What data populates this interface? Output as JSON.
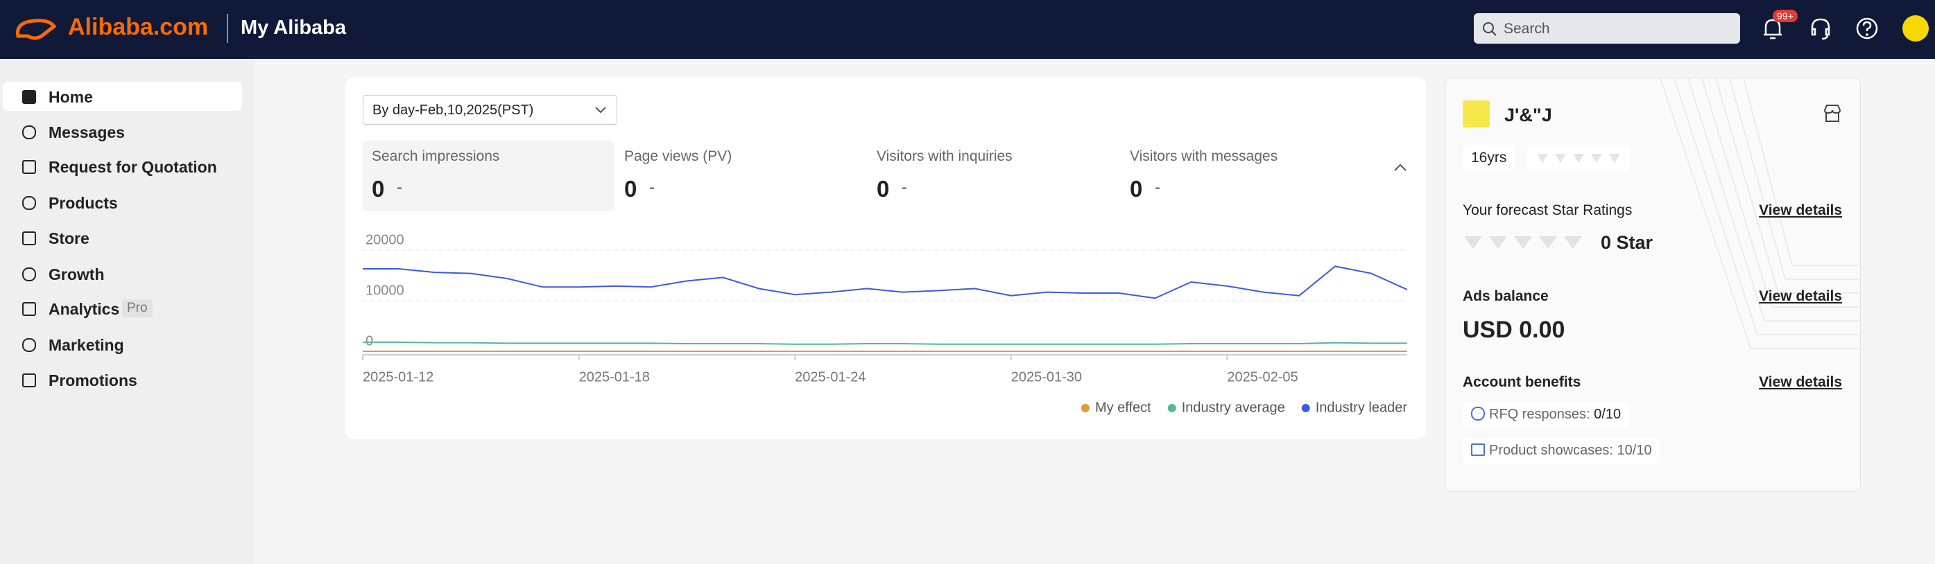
{
  "header": {
    "logo": "Alibaba.com",
    "title": "My Alibaba",
    "search_placeholder": "Search",
    "notification_badge": "99+"
  },
  "sidebar": {
    "items": [
      "Home",
      "Messages",
      "Request for Quotation",
      "Products",
      "Store",
      "Growth",
      "Analytics",
      "Marketing",
      "Promotions"
    ],
    "selected": 0,
    "pro_badge": "Pro"
  },
  "date_selector": "By day-Feb,10,2025(PST)",
  "metrics": [
    {
      "label": "Search impressions",
      "value": 0,
      "change": "-"
    },
    {
      "label": "Page views (PV)",
      "value": 0,
      "change": "-"
    },
    {
      "label": "Visitors with inquiries",
      "value": 0,
      "change": "-"
    },
    {
      "label": "Visitors with messages",
      "value": 0,
      "change": "-"
    }
  ],
  "chart_data": {
    "type": "line",
    "x": [
      "2025-01-12",
      "2025-01-13",
      "2025-01-14",
      "2025-01-15",
      "2025-01-16",
      "2025-01-17",
      "2025-01-18",
      "2025-01-19",
      "2025-01-20",
      "2025-01-21",
      "2025-01-22",
      "2025-01-23",
      "2025-01-24",
      "2025-01-25",
      "2025-01-26",
      "2025-01-27",
      "2025-01-28",
      "2025-01-29",
      "2025-01-30",
      "2025-01-31",
      "2025-02-01",
      "2025-02-02",
      "2025-02-03",
      "2025-02-04",
      "2025-02-05",
      "2025-02-06",
      "2025-02-07",
      "2025-02-08",
      "2025-02-09",
      "2025-02-10"
    ],
    "xticks": [
      "2025-01-12",
      "2025-01-18",
      "2025-01-24",
      "2025-01-30",
      "2025-02-05"
    ],
    "ylim": [
      0,
      20000
    ],
    "yticks": [
      0,
      10000,
      20000
    ],
    "grid": true,
    "legend": "bottom-right",
    "series": [
      {
        "name": "My effect",
        "color": "#e39a3b",
        "values": [
          0,
          0,
          0,
          0,
          0,
          0,
          0,
          0,
          0,
          0,
          0,
          0,
          0,
          0,
          0,
          0,
          0,
          0,
          0,
          0,
          0,
          0,
          0,
          0,
          0,
          0,
          0,
          0,
          0,
          0
        ]
      },
      {
        "name": "Industry average",
        "color": "#52b896",
        "values": [
          1800,
          1800,
          1700,
          1700,
          1600,
          1600,
          1600,
          1600,
          1600,
          1500,
          1500,
          1500,
          1400,
          1400,
          1500,
          1500,
          1400,
          1400,
          1400,
          1400,
          1400,
          1400,
          1400,
          1500,
          1500,
          1500,
          1500,
          1700,
          1600,
          1600
        ]
      },
      {
        "name": "Industry leader",
        "color": "#3b5bdb",
        "values": [
          16300,
          16300,
          15600,
          15400,
          14400,
          12700,
          12700,
          12900,
          12700,
          13900,
          14600,
          12400,
          11200,
          11700,
          12400,
          11700,
          12000,
          12400,
          11000,
          11700,
          11500,
          11500,
          10500,
          13700,
          12900,
          11700,
          11000,
          16800,
          15400,
          12200
        ]
      }
    ]
  },
  "profile": {
    "name": "J'&\"J",
    "years": "16yrs"
  },
  "star_ratings": {
    "title": "Your forecast Star Ratings",
    "link": "View details",
    "value": "0 Star"
  },
  "ads": {
    "title": "Ads balance",
    "link": "View details",
    "balance": "USD 0.00"
  },
  "benefits": {
    "title": "Account benefits",
    "link": "View details",
    "items": [
      {
        "label": "RFQ responses:",
        "value": "0/10"
      },
      {
        "label": "Product showcases:",
        "value": "10/10"
      }
    ]
  }
}
